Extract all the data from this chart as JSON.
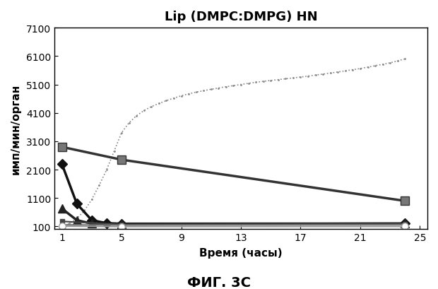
{
  "title": "Lip (DMPC:DMPG) HN",
  "xlabel": "Время (часы)",
  "ylabel": "имп/мин/орган",
  "caption": "ФИГ. 3C",
  "xlim": [
    0.5,
    25.5
  ],
  "ylim": [
    0,
    7100
  ],
  "xticks": [
    1,
    5,
    9,
    13,
    17,
    21,
    25
  ],
  "yticks": [
    100,
    1100,
    2100,
    3100,
    4100,
    5100,
    6100,
    7100
  ],
  "series": [
    {
      "name": "dotted_rising",
      "x": [
        1,
        1.5,
        2,
        2.5,
        3,
        3.5,
        4,
        4.5,
        5,
        5.5,
        6,
        6.5,
        7,
        7.5,
        8,
        8.5,
        9,
        9.5,
        10,
        10.5,
        11,
        11.5,
        12,
        12.5,
        13,
        13.5,
        14,
        14.5,
        15,
        15.5,
        16,
        16.5,
        17,
        17.5,
        18,
        18.5,
        19,
        19.5,
        20,
        20.5,
        21,
        21.5,
        22,
        22.5,
        23,
        23.5,
        24
      ],
      "y": [
        110,
        200,
        380,
        650,
        1050,
        1550,
        2100,
        2750,
        3400,
        3750,
        4000,
        4180,
        4320,
        4430,
        4530,
        4620,
        4700,
        4770,
        4830,
        4880,
        4930,
        4975,
        5020,
        5060,
        5100,
        5140,
        5175,
        5210,
        5240,
        5270,
        5300,
        5330,
        5360,
        5395,
        5430,
        5465,
        5500,
        5540,
        5580,
        5620,
        5660,
        5710,
        5760,
        5810,
        5860,
        5930,
        6000
      ],
      "color": "#888888",
      "linestyle": "dotted",
      "linewidth": 1.2,
      "marker": ".",
      "markersize": 2
    },
    {
      "name": "square_decreasing",
      "x": [
        1,
        5,
        24
      ],
      "y": [
        2900,
        2450,
        1000
      ],
      "color": "#333333",
      "linestyle": "solid",
      "linewidth": 2.5,
      "marker": "s",
      "markersize": 8,
      "markerfacecolor": "#777777"
    },
    {
      "name": "diamond_decreasing",
      "x": [
        1,
        2,
        3,
        4,
        5,
        24
      ],
      "y": [
        2300,
        900,
        320,
        215,
        195,
        200
      ],
      "color": "#111111",
      "linestyle": "solid",
      "linewidth": 2.5,
      "marker": "D",
      "markersize": 7,
      "markerfacecolor": "#111111"
    },
    {
      "name": "triangle_flat",
      "x": [
        1,
        2,
        3,
        5,
        24
      ],
      "y": [
        730,
        320,
        200,
        175,
        200
      ],
      "color": "#222222",
      "linestyle": "solid",
      "linewidth": 2.5,
      "marker": "^",
      "markersize": 8,
      "markerfacecolor": "#222222"
    },
    {
      "name": "flat_dark",
      "x": [
        1,
        5,
        24
      ],
      "y": [
        280,
        165,
        190
      ],
      "color": "#444444",
      "linestyle": "solid",
      "linewidth": 1.5,
      "marker": "s",
      "markersize": 4,
      "markerfacecolor": "#444444"
    },
    {
      "name": "flat_gray",
      "x": [
        1,
        5,
        24
      ],
      "y": [
        160,
        145,
        160
      ],
      "color": "#777777",
      "linestyle": "solid",
      "linewidth": 1.5,
      "marker": ".",
      "markersize": 5,
      "markerfacecolor": "#777777"
    },
    {
      "name": "open_diamond_flat",
      "x": [
        1,
        5,
        24
      ],
      "y": [
        110,
        95,
        100
      ],
      "color": "#999999",
      "linestyle": "solid",
      "linewidth": 1.5,
      "marker": "o",
      "markersize": 7,
      "markerfacecolor": "white"
    }
  ]
}
